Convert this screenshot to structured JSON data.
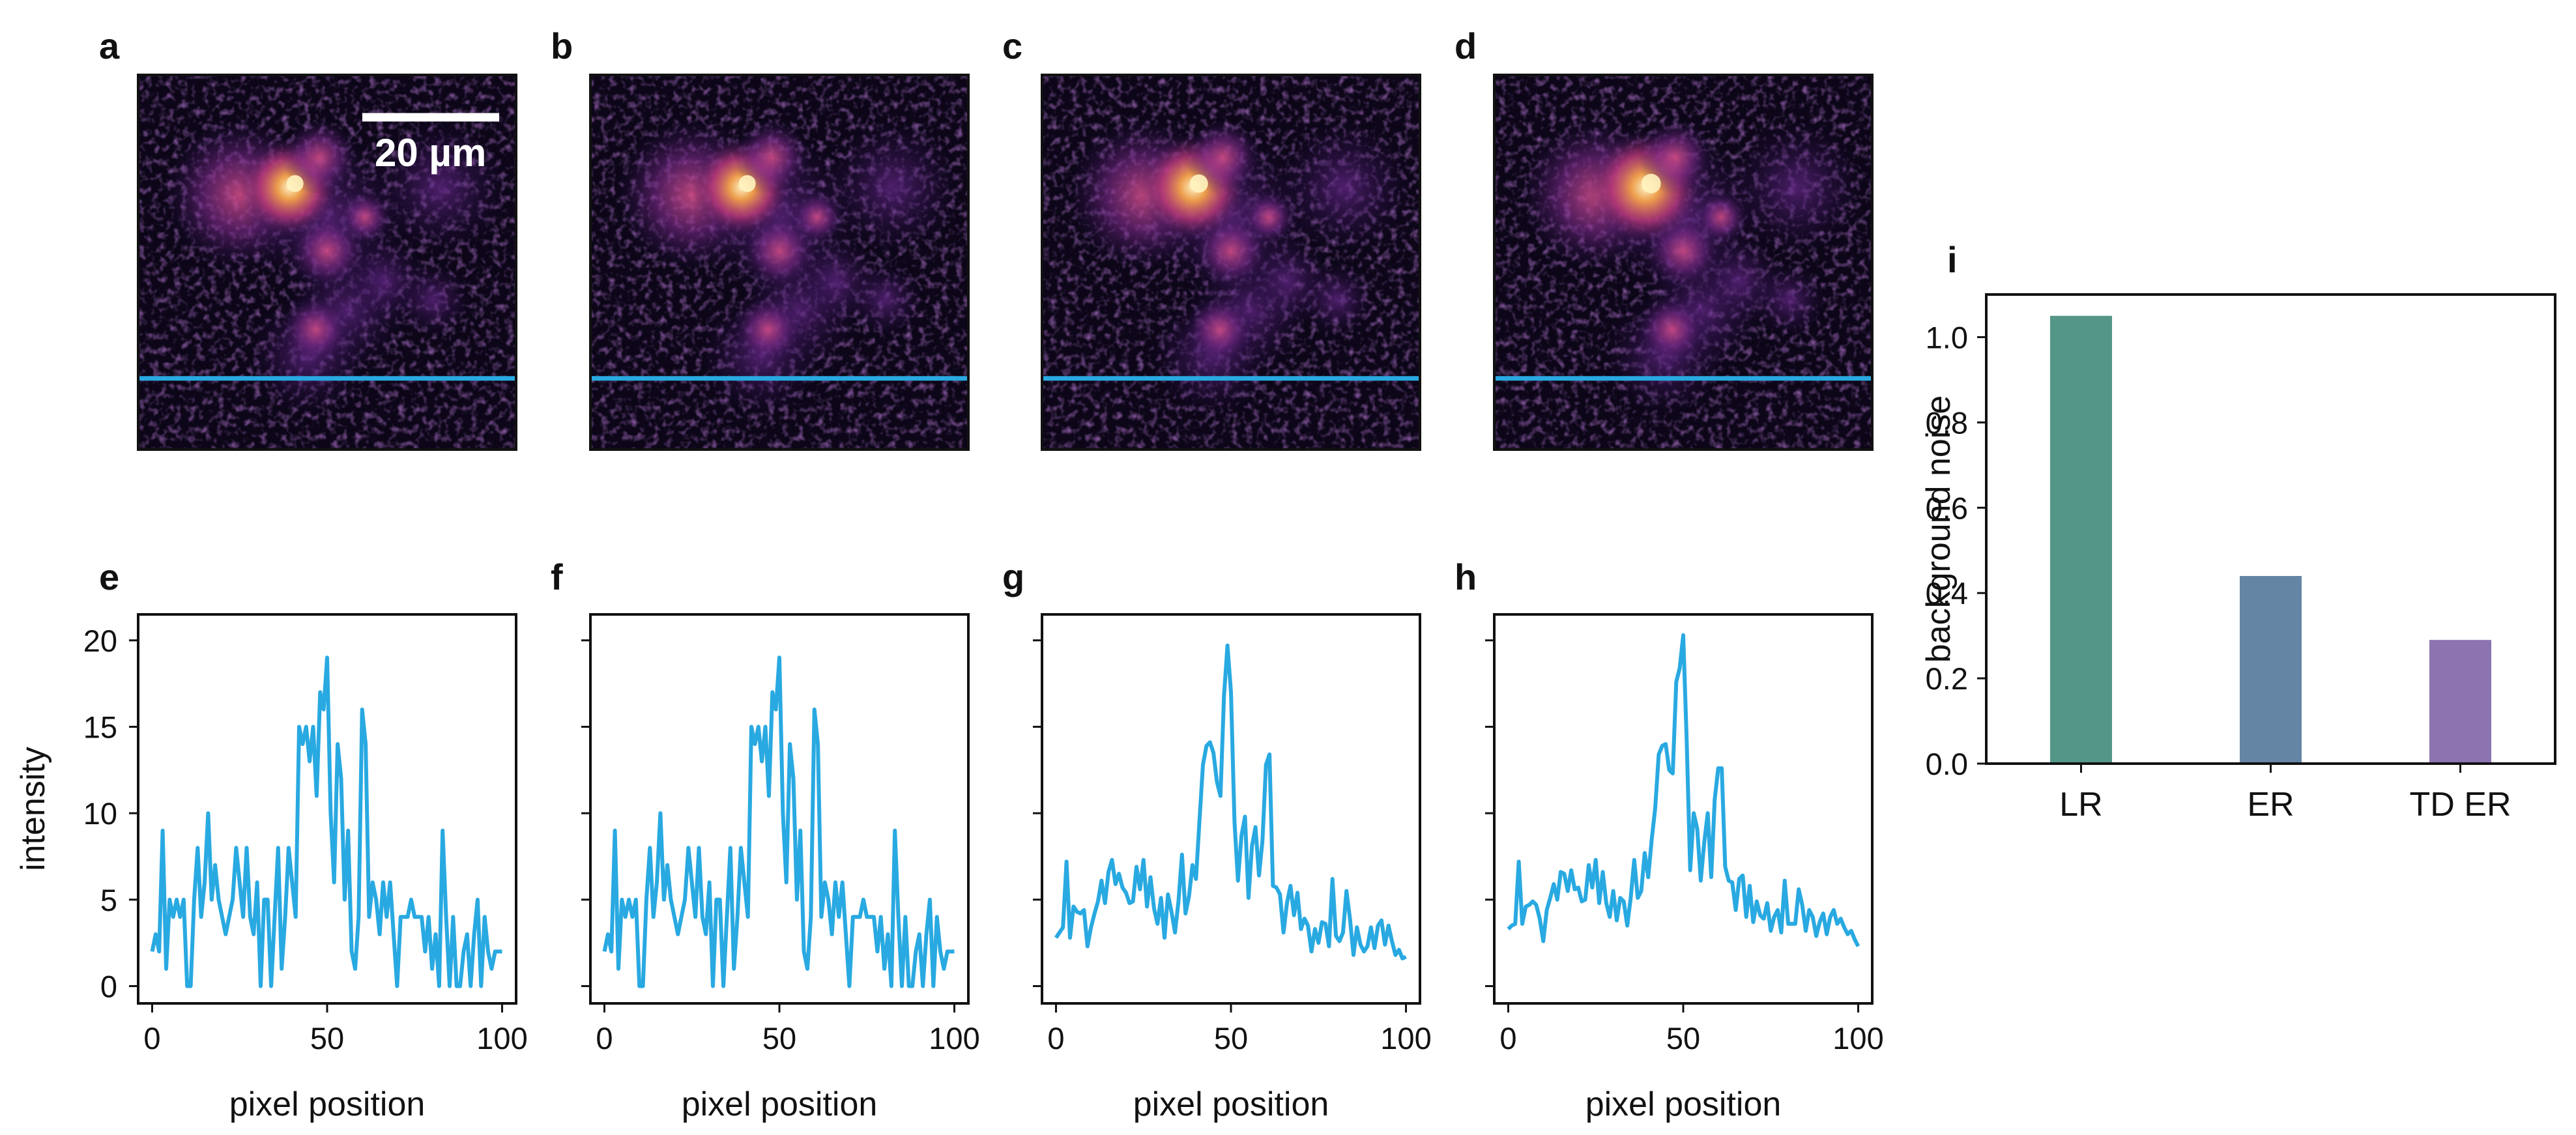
{
  "figure": {
    "image_panels": [
      {
        "label": "a",
        "peak_scale": 1.0
      },
      {
        "label": "b",
        "peak_scale": 1.0
      },
      {
        "label": "c",
        "peak_scale": 1.08
      },
      {
        "label": "d",
        "peak_scale": 1.15
      }
    ],
    "scale_bar": {
      "text": "20 µm"
    },
    "colors": {
      "line": "#29a9e1",
      "axis": "#111111"
    }
  },
  "chart_data": [
    {
      "type": "line",
      "panel": "e",
      "xlabel": "pixel position",
      "ylabel": "intensity",
      "xlim": [
        -4,
        104
      ],
      "ylim": [
        -1,
        21.5
      ],
      "xticks": [
        0,
        50,
        100
      ],
      "yticks": [
        0,
        5,
        10,
        15,
        20
      ],
      "series": [
        {
          "values": [
            2,
            3,
            2,
            9,
            1,
            5,
            4,
            5,
            4,
            5,
            0,
            0,
            5,
            8,
            4,
            6,
            10,
            5,
            7,
            5,
            4,
            3,
            4,
            5,
            8,
            6,
            4,
            8,
            4,
            3,
            6,
            0,
            5,
            5,
            0,
            4,
            8,
            1,
            4,
            8,
            6,
            4,
            15,
            14,
            15,
            13,
            15,
            11,
            17,
            16,
            19,
            10,
            6,
            14,
            12,
            5,
            9,
            2,
            1,
            4,
            16,
            14,
            4,
            6,
            5,
            3,
            6,
            4,
            6,
            3,
            0,
            4,
            4,
            4,
            5,
            4,
            4,
            4,
            2,
            4,
            1,
            3,
            0,
            9,
            4,
            0,
            4,
            0,
            0,
            2,
            3,
            0,
            3,
            5,
            0,
            4,
            2,
            1,
            2,
            2,
            2
          ]
        }
      ]
    },
    {
      "type": "line",
      "panel": "f",
      "xlabel": "pixel position",
      "xlim": [
        -4,
        104
      ],
      "ylim": [
        -1,
        21.5
      ],
      "xticks": [
        0,
        50,
        100
      ],
      "yticks": [
        0,
        5,
        10,
        15,
        20
      ],
      "series": [
        {
          "values": [
            2,
            3,
            2,
            9,
            1,
            5,
            4,
            5,
            4,
            5,
            0,
            0,
            5,
            8,
            4,
            6,
            10,
            5,
            7,
            5,
            4,
            3,
            4,
            5,
            8,
            6,
            4,
            8,
            4,
            3,
            6,
            0,
            5,
            5,
            0,
            4,
            8,
            1,
            4,
            8,
            6,
            4,
            15,
            14,
            15,
            13,
            15,
            11,
            17,
            16,
            19,
            10,
            6,
            14,
            12,
            5,
            9,
            2,
            1,
            4,
            16,
            14,
            4,
            6,
            5,
            3,
            6,
            4,
            6,
            3,
            0,
            4,
            4,
            4,
            5,
            4,
            4,
            4,
            2,
            4,
            1,
            3,
            0,
            9,
            4,
            0,
            4,
            0,
            0,
            2,
            3,
            0,
            3,
            5,
            0,
            4,
            2,
            1,
            2,
            2,
            2
          ]
        }
      ]
    },
    {
      "type": "line",
      "panel": "g",
      "xlabel": "pixel position",
      "xlim": [
        -4,
        104
      ],
      "ylim": [
        -1,
        21.5
      ],
      "xticks": [
        0,
        50,
        100
      ],
      "yticks": [
        0,
        5,
        10,
        15,
        20
      ],
      "series": [
        {
          "values": [
            2.8,
            3.1,
            3.4,
            7.2,
            2.8,
            4.6,
            4.3,
            4.2,
            4.4,
            2.3,
            3.4,
            4.2,
            4.9,
            6.1,
            4.8,
            6.6,
            7.3,
            5.9,
            6.5,
            5.7,
            5.4,
            4.8,
            4.9,
            6.9,
            5.6,
            7.3,
            4.6,
            6.3,
            4.5,
            3.6,
            5.1,
            2.8,
            5.3,
            4.3,
            3.1,
            4.9,
            7.6,
            4.2,
            5.2,
            7.0,
            6.2,
            9.6,
            12.8,
            13.9,
            14.1,
            13.5,
            11.8,
            11.0,
            16.8,
            19.7,
            17.0,
            9.5,
            6.1,
            8.7,
            9.8,
            5.1,
            8.1,
            9.2,
            6.4,
            8.4,
            12.8,
            13.4,
            5.8,
            5.7,
            5.3,
            3.1,
            4.8,
            5.8,
            4.1,
            5.4,
            3.3,
            3.9,
            3.5,
            2.0,
            3.3,
            2.5,
            3.7,
            3.6,
            2.3,
            6.2,
            2.9,
            2.6,
            3.1,
            5.5,
            3.9,
            1.8,
            3.4,
            2.4,
            2.0,
            2.3,
            3.4,
            2.2,
            3.5,
            3.8,
            2.4,
            3.5,
            2.6,
            1.8,
            2.1,
            1.6,
            1.7
          ]
        }
      ]
    },
    {
      "type": "line",
      "panel": "h",
      "xlabel": "pixel position",
      "xlim": [
        -4,
        104
      ],
      "ylim": [
        -1,
        21.5
      ],
      "xticks": [
        0,
        50,
        100
      ],
      "yticks": [
        0,
        5,
        10,
        15,
        20
      ],
      "series": [
        {
          "values": [
            3.3,
            3.5,
            3.6,
            7.2,
            3.6,
            4.6,
            4.7,
            4.9,
            4.7,
            3.9,
            2.6,
            4.4,
            5.1,
            5.9,
            5.0,
            6.6,
            6.5,
            5.5,
            6.7,
            5.6,
            5.7,
            4.9,
            5.0,
            7.0,
            5.7,
            7.3,
            4.8,
            6.6,
            4.8,
            4.0,
            5.5,
            3.8,
            5.1,
            4.9,
            3.5,
            5.1,
            7.3,
            5.1,
            5.5,
            7.7,
            6.3,
            8.5,
            10.3,
            13.4,
            13.9,
            14.0,
            12.5,
            12.3,
            17.6,
            18.4,
            20.3,
            14.1,
            6.7,
            10.0,
            9.1,
            6.1,
            8.3,
            10.0,
            6.3,
            10.8,
            12.6,
            12.6,
            6.9,
            6.1,
            6.0,
            4.4,
            6.2,
            6.4,
            4.0,
            5.8,
            3.7,
            4.9,
            4.1,
            3.9,
            4.8,
            3.2,
            4.0,
            4.4,
            3.1,
            6.1,
            3.6,
            3.6,
            3.6,
            5.6,
            4.7,
            3.2,
            4.4,
            4.0,
            2.9,
            3.7,
            4.2,
            3.0,
            4.0,
            4.4,
            3.6,
            3.9,
            3.4,
            3.0,
            3.2,
            2.7,
            2.3
          ]
        }
      ]
    },
    {
      "type": "bar",
      "panel": "i",
      "ylabel": "background noise",
      "categories": [
        "LR",
        "ER",
        "TD ER"
      ],
      "values": [
        1.05,
        0.44,
        0.29
      ],
      "colors": [
        "#549789",
        "#6585a5",
        "#8c74b1"
      ],
      "ylim": [
        0,
        1.1
      ],
      "yticks": [
        "0.0",
        "0.2",
        "0.4",
        "0.6",
        "0.8",
        "1.0"
      ]
    }
  ]
}
